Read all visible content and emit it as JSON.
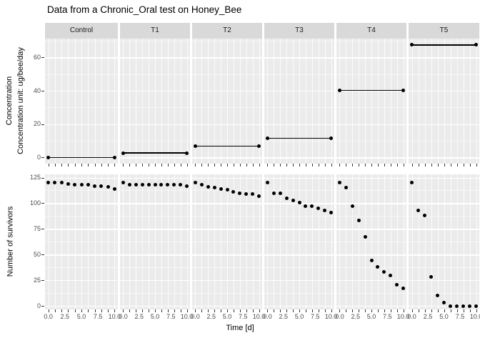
{
  "title": "Data from a Chronic_Oral test on Honey_Bee",
  "colors": {
    "panel_bg": "#EBEBEB",
    "strip_bg": "#D9D9D9",
    "gridline": "#FFFFFF",
    "point": "#000000",
    "axis_tick_text": "#4D4D4D",
    "title_text": "#000000"
  },
  "chart_data": {
    "type": "scatter",
    "title": "Data from a Chronic_Oral test on Honey_Bee",
    "xlabel": "Time [d]",
    "xlim": [
      -0.5,
      10.5
    ],
    "x_tick_labels": [
      "0.0",
      "2.5",
      "5.0",
      "7.5",
      "10.0"
    ],
    "x_tick_values": [
      0,
      2.5,
      5,
      7.5,
      10
    ],
    "x_minor_tick_days": [
      0,
      1,
      2,
      3,
      4,
      5,
      6,
      7,
      8,
      9,
      10
    ],
    "facets": [
      "Control",
      "T1",
      "T2",
      "T3",
      "T4",
      "T5"
    ],
    "grid": "on",
    "legend": "none",
    "rows": [
      {
        "name": "concentration",
        "ylabel_lines": [
          "Concentration",
          "Concentration unit: ug/bee/day"
        ],
        "ytick_values": [
          0,
          20,
          40,
          60
        ],
        "ytick_minor_values": [
          10,
          30,
          50,
          70
        ],
        "ylim": [
          -3.5,
          71.5
        ],
        "geom": "line-with-endpoints",
        "x": [
          0,
          10
        ],
        "series": [
          {
            "facet": "Control",
            "values": [
              0,
              0
            ]
          },
          {
            "facet": "T1",
            "values": [
              2.7,
              2.7
            ]
          },
          {
            "facet": "T2",
            "values": [
              6.8,
              6.8
            ]
          },
          {
            "facet": "T3",
            "values": [
              11.5,
              11.5
            ]
          },
          {
            "facet": "T4",
            "values": [
              40.3,
              40.3
            ]
          },
          {
            "facet": "T5",
            "values": [
              67.5,
              67.5
            ]
          }
        ]
      },
      {
        "name": "survivors",
        "ylabel_lines": [
          "Number of survivors"
        ],
        "ytick_values": [
          0,
          25,
          50,
          75,
          100,
          125
        ],
        "ytick_minor_values": [
          12.5,
          37.5,
          62.5,
          87.5,
          112.5
        ],
        "ylim": [
          -3,
          128.5
        ],
        "geom": "point",
        "x": [
          0,
          1,
          2,
          3,
          4,
          5,
          6,
          7,
          8,
          9,
          10
        ],
        "series": [
          {
            "facet": "Control",
            "values": [
              120,
              120,
              120,
              119,
              118,
              118,
              118,
              117,
              117,
              116,
              114
            ]
          },
          {
            "facet": "T1",
            "values": [
              120,
              118,
              118,
              118,
              118,
              118,
              118,
              118,
              118,
              118,
              117
            ]
          },
          {
            "facet": "T2",
            "values": [
              120,
              118,
              116,
              115,
              114,
              113,
              111,
              110,
              109,
              109,
              107
            ]
          },
          {
            "facet": "T3",
            "values": [
              120,
              110,
              110,
              105,
              103,
              101,
              97,
              97,
              95,
              93,
              91
            ]
          },
          {
            "facet": "T4",
            "values": [
              120,
              115,
              97,
              83,
              67,
              44,
              38,
              33,
              30,
              21,
              17
            ]
          },
          {
            "facet": "T5",
            "values": [
              120,
              93,
              88,
              28,
              10,
              3,
              0,
              0,
              0,
              0,
              0
            ]
          }
        ]
      }
    ]
  }
}
